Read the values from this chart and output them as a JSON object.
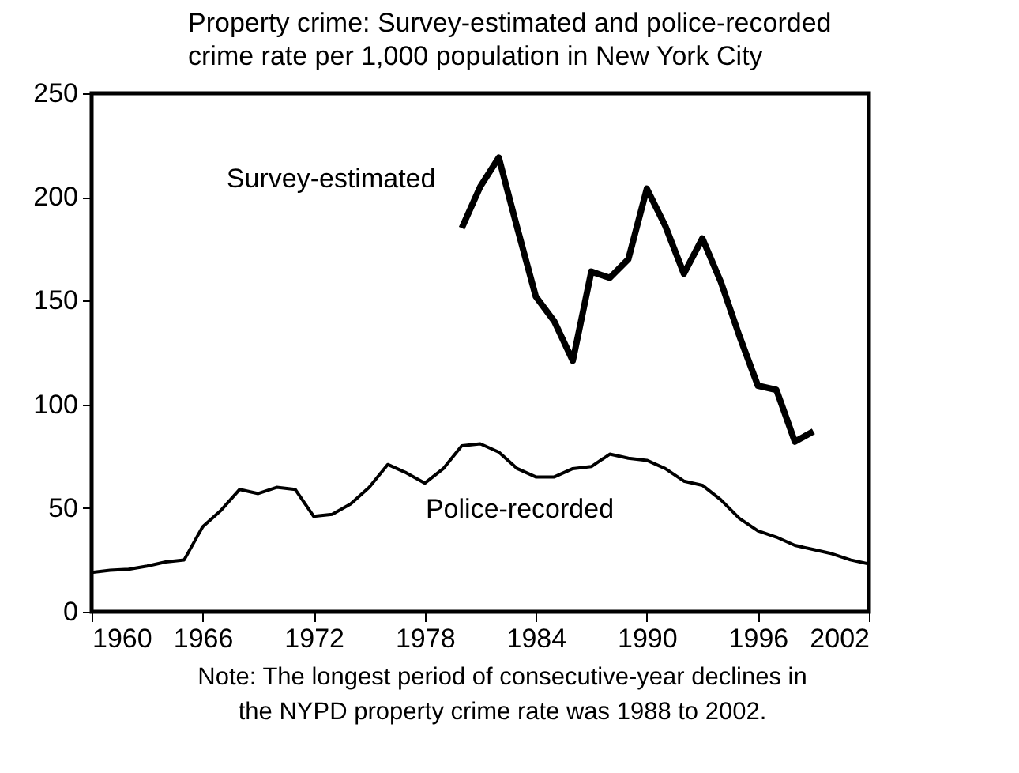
{
  "chart_data": {
    "type": "line",
    "title": "Property crime: Survey-estimated and police-recorded crime rate per 1,000 population in New York City",
    "annotations": [
      "Note: The longest period of consecutive-year declines in the NYPD property crime rate was 1988 to 2002."
    ],
    "x": [
      1960,
      1961,
      1962,
      1963,
      1964,
      1965,
      1966,
      1967,
      1968,
      1969,
      1970,
      1971,
      1972,
      1973,
      1974,
      1975,
      1976,
      1977,
      1978,
      1979,
      1980,
      1981,
      1982,
      1983,
      1984,
      1985,
      1986,
      1987,
      1988,
      1989,
      1990,
      1991,
      1992,
      1993,
      1994,
      1995,
      1996,
      1997,
      1998,
      1999,
      2000,
      2001,
      2002
    ],
    "series": [
      {
        "name": "Survey-estimated",
        "color": "#000000",
        "x": [
          1980,
          1981,
          1982,
          1983,
          1984,
          1985,
          1986,
          1987,
          1988,
          1989,
          1990,
          1991,
          1992,
          1993,
          1994,
          1995,
          1996,
          1997,
          1998,
          1999
        ],
        "values": [
          185,
          205,
          219,
          185,
          152,
          140,
          121,
          164,
          161,
          170,
          204,
          186,
          163,
          180,
          159,
          133,
          109,
          107,
          82,
          87
        ]
      },
      {
        "name": "Police-recorded",
        "color": "#000000",
        "values": [
          19,
          20,
          20.5,
          22,
          24,
          25,
          41,
          49,
          59,
          57,
          60,
          59,
          46,
          47,
          52,
          60,
          71,
          67,
          62,
          69,
          80,
          81,
          77,
          69,
          65,
          65,
          69,
          70,
          76,
          74,
          73,
          69,
          63,
          61,
          54,
          45,
          39,
          36,
          32,
          30,
          28,
          25,
          23
        ]
      }
    ],
    "xlim": [
      1960,
      2002
    ],
    "xticks": [
      1960,
      1966,
      1972,
      1978,
      1984,
      1990,
      1996,
      2002
    ],
    "ylim": [
      0,
      250
    ],
    "yticks": [
      0,
      50,
      100,
      150,
      200,
      250
    ],
    "marker": "none",
    "line_style": "solid"
  }
}
